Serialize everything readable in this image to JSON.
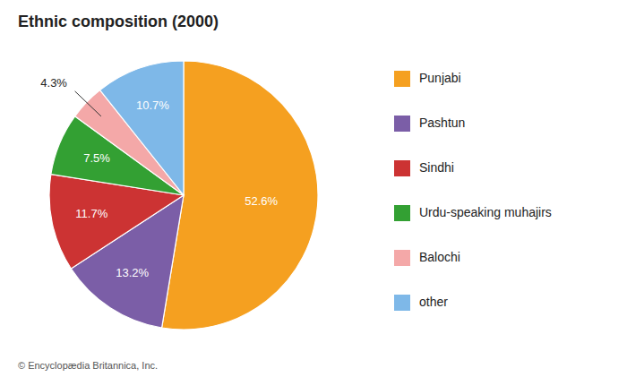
{
  "chart_data": {
    "type": "pie",
    "title": "Ethnic composition (2000)",
    "categories": [
      "Punjabi",
      "Pashtun",
      "Sindhi",
      "Urdu-speaking muhajirs",
      "Balochi",
      "other"
    ],
    "values": [
      52.6,
      13.2,
      11.7,
      7.5,
      4.3,
      10.7
    ],
    "value_labels": [
      "52.6%",
      "13.2%",
      "11.7%",
      "7.5%",
      "4.3%",
      "10.7%"
    ],
    "colors": [
      "#F5A020",
      "#7B5EA7",
      "#CC3333",
      "#33A033",
      "#F4A8A8",
      "#7EB8E8"
    ],
    "data_labels": true,
    "legend": "right",
    "annotations": [
      "© Encyclopædia Britannica, Inc."
    ]
  }
}
